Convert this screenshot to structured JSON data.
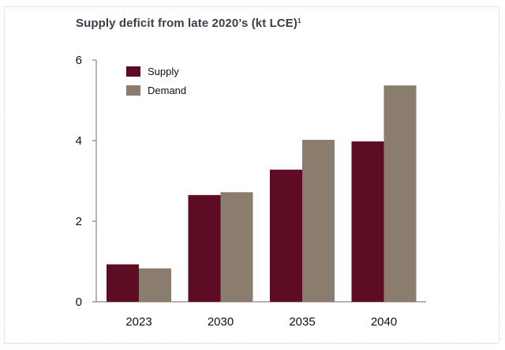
{
  "chart_data": {
    "type": "bar",
    "title": "Supply deficit from late 2020’s (kt LCE)",
    "title_footnote": "1",
    "xlabel": "",
    "ylabel": "",
    "categories": [
      "2023",
      "2030",
      "2035",
      "2040"
    ],
    "series": [
      {
        "name": "Supply",
        "color": "#5e0b24",
        "values": [
          0.93,
          2.65,
          3.28,
          3.98
        ]
      },
      {
        "name": "Demand",
        "color": "#8a7d6e",
        "values": [
          0.83,
          2.72,
          4.02,
          5.37
        ]
      }
    ],
    "ylim": [
      0,
      6
    ],
    "yticks": [
      0,
      2,
      4,
      6
    ],
    "grid": false,
    "legend_position": "top-left"
  }
}
